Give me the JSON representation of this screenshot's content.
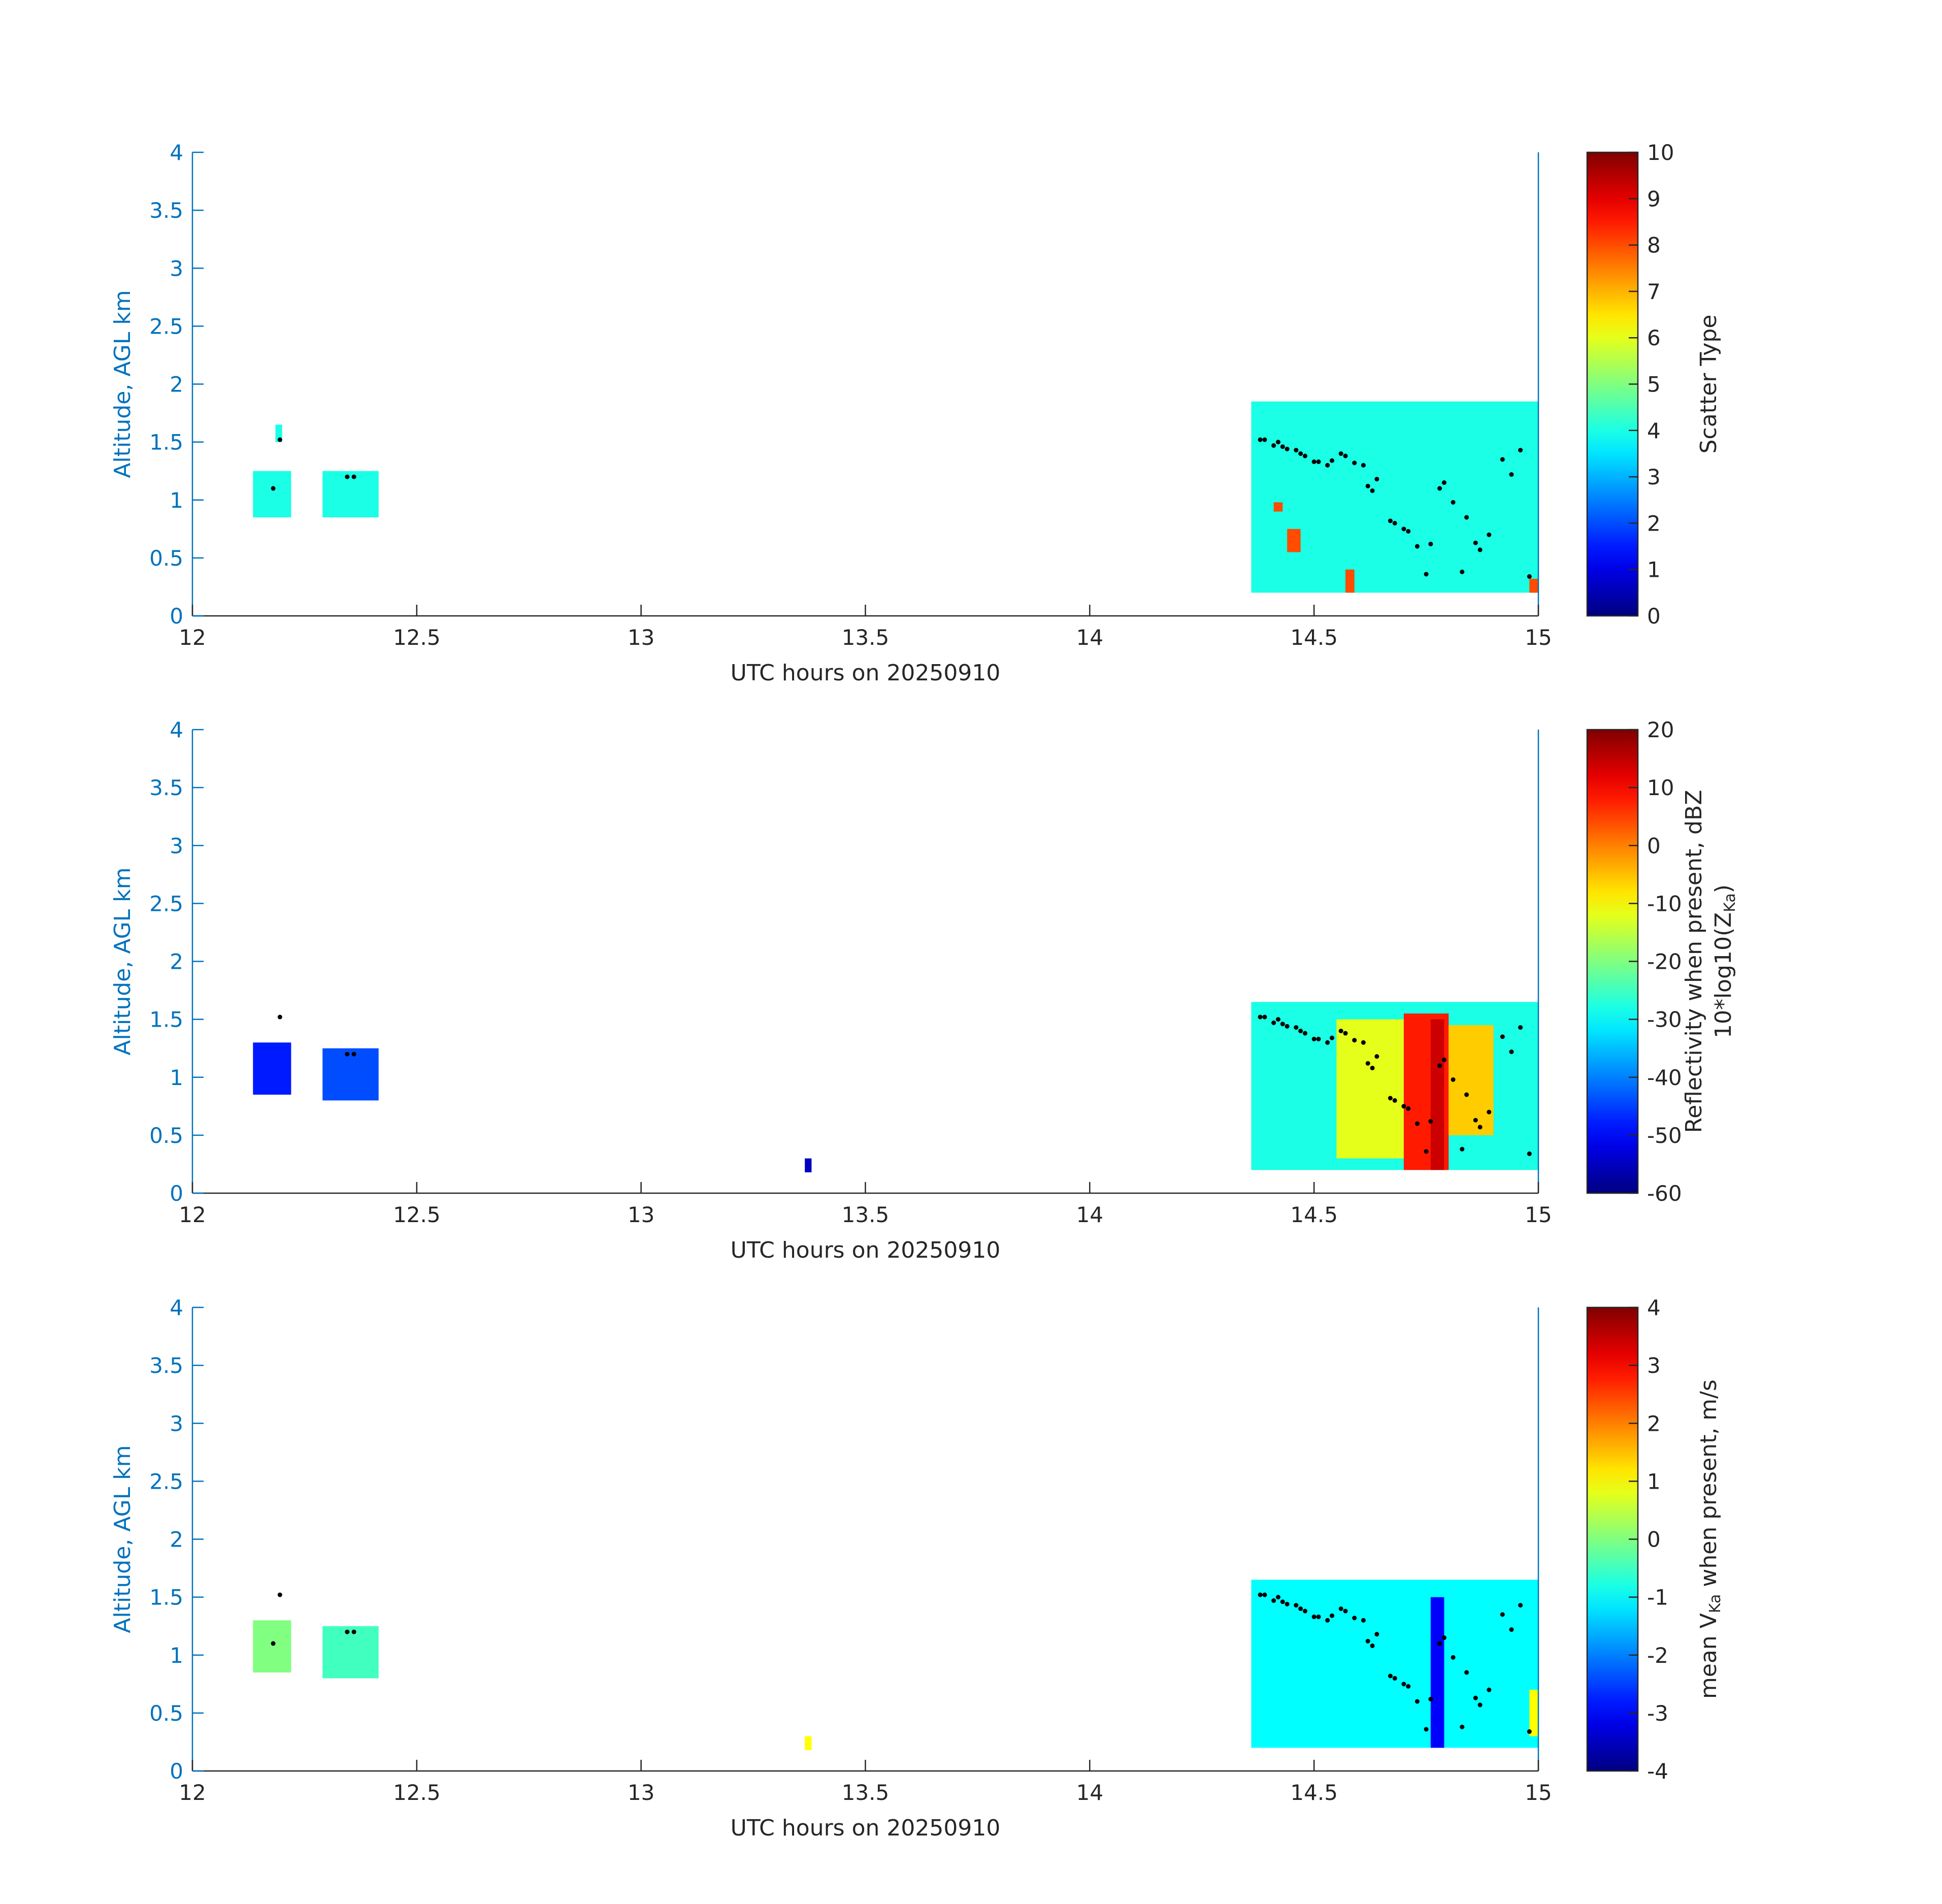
{
  "chart_data": [
    {
      "type": "heatmap",
      "panel": "scatter-type",
      "xlabel": "UTC hours on 20250910",
      "ylabel": "Altitude, AGL km",
      "xlim": [
        12,
        15
      ],
      "ylim": [
        0,
        4
      ],
      "xticks": [
        12,
        12.5,
        13,
        13.5,
        14,
        14.5,
        15
      ],
      "xtick_labels": [
        "12",
        "12.5",
        "13",
        "13.5",
        "14",
        "14.5",
        "15"
      ],
      "yticks": [
        0,
        0.5,
        1,
        1.5,
        2,
        2.5,
        3,
        3.5,
        4
      ],
      "ytick_labels": [
        "0",
        "0.5",
        "1",
        "1.5",
        "2",
        "2.5",
        "3",
        "3.5",
        "4"
      ],
      "colorbar": {
        "label": "Scatter Type",
        "label_lines": [
          {
            "text": "Scatter Type"
          }
        ],
        "range": [
          0,
          10
        ],
        "ticks": [
          0,
          1,
          2,
          3,
          4,
          5,
          6,
          7,
          8,
          9,
          10
        ],
        "tick_labels": [
          "0",
          "1",
          "2",
          "3",
          "4",
          "5",
          "6",
          "7",
          "8",
          "9",
          "10"
        ]
      },
      "regions": [
        {
          "x": [
            12.135,
            12.22
          ],
          "y": [
            0.85,
            1.25
          ],
          "value": 4
        },
        {
          "x": [
            12.185,
            12.2
          ],
          "y": [
            1.5,
            1.65
          ],
          "value": 4
        },
        {
          "x": [
            12.29,
            12.415
          ],
          "y": [
            0.85,
            1.25
          ],
          "value": 4
        },
        {
          "x": [
            14.36,
            15.0
          ],
          "y": [
            0.2,
            1.85
          ],
          "value": 4
        },
        {
          "x": [
            14.41,
            14.43
          ],
          "y": [
            0.9,
            0.98
          ],
          "value": 8
        },
        {
          "x": [
            14.44,
            14.47
          ],
          "y": [
            0.55,
            0.75
          ],
          "value": 8
        },
        {
          "x": [
            14.57,
            14.59
          ],
          "y": [
            0.2,
            0.4
          ],
          "value": 8
        },
        {
          "x": [
            14.98,
            15.0
          ],
          "y": [
            0.2,
            0.32
          ],
          "value": 8
        }
      ],
      "points": [
        [
          12.18,
          1.1
        ],
        [
          12.195,
          1.52
        ],
        [
          12.345,
          1.2
        ],
        [
          12.36,
          1.2
        ]
      ]
    },
    {
      "type": "heatmap",
      "panel": "reflectivity",
      "xlabel": "UTC hours on 20250910",
      "ylabel": "Altitude, AGL km",
      "xlim": [
        12,
        15
      ],
      "ylim": [
        0,
        4
      ],
      "xticks": [
        12,
        12.5,
        13,
        13.5,
        14,
        14.5,
        15
      ],
      "xtick_labels": [
        "12",
        "12.5",
        "13",
        "13.5",
        "14",
        "14.5",
        "15"
      ],
      "yticks": [
        0,
        0.5,
        1,
        1.5,
        2,
        2.5,
        3,
        3.5,
        4
      ],
      "ytick_labels": [
        "0",
        "0.5",
        "1",
        "1.5",
        "2",
        "2.5",
        "3",
        "3.5",
        "4"
      ],
      "colorbar": {
        "label": "Reflectivity when present, dBZ",
        "label_lines": [
          {
            "text": "Reflectivity when present, dBZ"
          },
          {
            "text": "10*log10(Z",
            "sub": "Ka",
            "after": ")"
          }
        ],
        "range": [
          -60,
          20
        ],
        "ticks": [
          -60,
          -50,
          -40,
          -30,
          -20,
          -10,
          0,
          10,
          20
        ],
        "tick_labels": [
          "-60",
          "-50",
          "-40",
          "-30",
          "-20",
          "-10",
          "0",
          "10",
          "20"
        ]
      },
      "regions": [
        {
          "x": [
            12.135,
            12.22
          ],
          "y": [
            0.85,
            1.3
          ],
          "value": -48
        },
        {
          "x": [
            12.29,
            12.415
          ],
          "y": [
            0.8,
            1.25
          ],
          "value": -44
        },
        {
          "x": [
            13.365,
            13.38
          ],
          "y": [
            0.18,
            0.3
          ],
          "value": -55
        },
        {
          "x": [
            14.36,
            15.0
          ],
          "y": [
            0.2,
            1.65
          ],
          "value": -28
        },
        {
          "x": [
            14.55,
            14.7
          ],
          "y": [
            0.3,
            1.5
          ],
          "value": -12
        },
        {
          "x": [
            14.7,
            14.8
          ],
          "y": [
            0.2,
            1.55
          ],
          "value": 8
        },
        {
          "x": [
            14.76,
            14.79
          ],
          "y": [
            0.2,
            1.5
          ],
          "value": 14
        },
        {
          "x": [
            14.8,
            14.9
          ],
          "y": [
            0.5,
            1.45
          ],
          "value": -6
        }
      ],
      "points": [
        [
          12.195,
          1.52
        ],
        [
          12.345,
          1.2
        ],
        [
          12.36,
          1.2
        ]
      ]
    },
    {
      "type": "heatmap",
      "panel": "mean-velocity",
      "xlabel": "UTC hours on 20250910",
      "ylabel": "Altitude, AGL km",
      "xlim": [
        12,
        15
      ],
      "ylim": [
        0,
        4
      ],
      "xticks": [
        12,
        12.5,
        13,
        13.5,
        14,
        14.5,
        15
      ],
      "xtick_labels": [
        "12",
        "12.5",
        "13",
        "13.5",
        "14",
        "14.5",
        "15"
      ],
      "yticks": [
        0,
        0.5,
        1,
        1.5,
        2,
        2.5,
        3,
        3.5,
        4
      ],
      "ytick_labels": [
        "0",
        "0.5",
        "1",
        "1.5",
        "2",
        "2.5",
        "3",
        "3.5",
        "4"
      ],
      "colorbar": {
        "label": "mean VKa when present, m/s",
        "label_lines": [
          {
            "text": "mean V",
            "sub": "Ka",
            "after": " when present, m/s"
          }
        ],
        "range": [
          -4,
          4
        ],
        "ticks": [
          -4,
          -3,
          -2,
          -1,
          0,
          1,
          2,
          3,
          4
        ],
        "tick_labels": [
          "-4",
          "-3",
          "-2",
          "-1",
          "0",
          "1",
          "2",
          "3",
          "4"
        ]
      },
      "regions": [
        {
          "x": [
            12.135,
            12.22
          ],
          "y": [
            0.85,
            1.3
          ],
          "value": 0
        },
        {
          "x": [
            12.29,
            12.415
          ],
          "y": [
            0.8,
            1.25
          ],
          "value": -0.5
        },
        {
          "x": [
            13.365,
            13.38
          ],
          "y": [
            0.18,
            0.3
          ],
          "value": 1
        },
        {
          "x": [
            14.36,
            15.0
          ],
          "y": [
            0.2,
            1.65
          ],
          "value": -1
        },
        {
          "x": [
            14.76,
            14.79
          ],
          "y": [
            0.2,
            1.5
          ],
          "value": -3
        },
        {
          "x": [
            14.98,
            15.0
          ],
          "y": [
            0.3,
            0.7
          ],
          "value": 1
        }
      ],
      "points": [
        [
          12.18,
          1.1
        ],
        [
          12.195,
          1.52
        ],
        [
          12.345,
          1.2
        ],
        [
          12.36,
          1.2
        ]
      ]
    }
  ],
  "flight_track": [
    [
      14.38,
      1.52
    ],
    [
      14.39,
      1.52
    ],
    [
      14.41,
      1.47
    ],
    [
      14.42,
      1.5
    ],
    [
      14.43,
      1.46
    ],
    [
      14.44,
      1.44
    ],
    [
      14.46,
      1.43
    ],
    [
      14.47,
      1.4
    ],
    [
      14.48,
      1.38
    ],
    [
      14.5,
      1.33
    ],
    [
      14.51,
      1.33
    ],
    [
      14.53,
      1.3
    ],
    [
      14.54,
      1.34
    ],
    [
      14.56,
      1.4
    ],
    [
      14.57,
      1.38
    ],
    [
      14.59,
      1.32
    ],
    [
      14.61,
      1.3
    ],
    [
      14.62,
      1.12
    ],
    [
      14.63,
      1.08
    ],
    [
      14.64,
      1.18
    ],
    [
      14.67,
      0.82
    ],
    [
      14.68,
      0.8
    ],
    [
      14.7,
      0.75
    ],
    [
      14.71,
      0.73
    ],
    [
      14.73,
      0.6
    ],
    [
      14.75,
      0.36
    ],
    [
      14.76,
      0.62
    ],
    [
      14.78,
      1.1
    ],
    [
      14.79,
      1.15
    ],
    [
      14.81,
      0.98
    ],
    [
      14.83,
      0.38
    ],
    [
      14.84,
      0.85
    ],
    [
      14.86,
      0.63
    ],
    [
      14.87,
      0.57
    ],
    [
      14.89,
      0.7
    ],
    [
      14.92,
      1.35
    ],
    [
      14.94,
      1.22
    ],
    [
      14.96,
      1.43
    ],
    [
      14.98,
      0.34
    ]
  ]
}
